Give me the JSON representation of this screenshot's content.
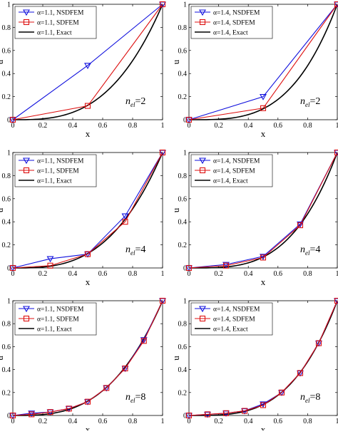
{
  "chart_data": [
    {
      "type": "line",
      "xlabel": "x",
      "ylabel": "u",
      "xlim": [
        0,
        1
      ],
      "ylim": [
        0,
        1
      ],
      "xticks": [
        "0",
        "0.2",
        "0.4",
        "0.6",
        "0.8",
        "1"
      ],
      "yticks": [
        "0",
        "0.2",
        "0.4",
        "0.6",
        "0.8",
        "1"
      ],
      "legend_position": "top-left",
      "annotation": {
        "n": "n",
        "sub": "el",
        "value": "=2"
      },
      "alpha": 1.1,
      "series": [
        {
          "name": "α=1.1, NSDFEM",
          "color": "#1010dd",
          "marker": "triangle-down",
          "x": [
            0,
            0.5,
            1
          ],
          "y": [
            0,
            0.47,
            1
          ]
        },
        {
          "name": "α=1.1, SDFEM",
          "color": "#dd1010",
          "marker": "square",
          "x": [
            0,
            0.5,
            1
          ],
          "y": [
            0,
            0.12,
            1
          ]
        },
        {
          "name": "α=1.1, Exact",
          "color": "#000000",
          "marker": "none",
          "exact": true
        }
      ]
    },
    {
      "type": "line",
      "xlabel": "x",
      "ylabel": "u",
      "xlim": [
        0,
        1
      ],
      "ylim": [
        0,
        1
      ],
      "xticks": [
        "0",
        "0.2",
        "0.4",
        "0.6",
        "0.8",
        "1"
      ],
      "yticks": [
        "0",
        "0.2",
        "0.4",
        "0.6",
        "0.8",
        "1"
      ],
      "legend_position": "top-left",
      "annotation": {
        "n": "n",
        "sub": "el",
        "value": "=2"
      },
      "alpha": 1.4,
      "series": [
        {
          "name": "α=1.4, NSDFEM",
          "color": "#1010dd",
          "marker": "triangle-down",
          "x": [
            0,
            0.5,
            1
          ],
          "y": [
            0,
            0.2,
            1
          ]
        },
        {
          "name": "α=1.4, SDFEM",
          "color": "#dd1010",
          "marker": "square",
          "x": [
            0,
            0.5,
            1
          ],
          "y": [
            0,
            0.1,
            1
          ]
        },
        {
          "name": "α=1.4, Exact",
          "color": "#000000",
          "marker": "none",
          "exact": true
        }
      ]
    },
    {
      "type": "line",
      "xlabel": "x",
      "ylabel": "u",
      "xlim": [
        0,
        1
      ],
      "ylim": [
        0,
        1
      ],
      "xticks": [
        "0",
        "0.2",
        "0.4",
        "0.6",
        "0.8",
        "1"
      ],
      "yticks": [
        "0",
        "0.2",
        "0.4",
        "0.6",
        "0.8",
        "1"
      ],
      "legend_position": "top-left",
      "annotation": {
        "n": "n",
        "sub": "el",
        "value": "=4"
      },
      "alpha": 1.1,
      "series": [
        {
          "name": "α=1.1, NSDFEM",
          "color": "#1010dd",
          "marker": "triangle-down",
          "x": [
            0,
            0.25,
            0.5,
            0.75,
            1
          ],
          "y": [
            0,
            0.08,
            0.12,
            0.45,
            1
          ]
        },
        {
          "name": "α=1.1, SDFEM",
          "color": "#dd1010",
          "marker": "square",
          "x": [
            0,
            0.25,
            0.5,
            0.75,
            1
          ],
          "y": [
            0,
            0.02,
            0.12,
            0.4,
            1
          ]
        },
        {
          "name": "α=1.1, Exact",
          "color": "#000000",
          "marker": "none",
          "exact": true
        }
      ]
    },
    {
      "type": "line",
      "xlabel": "x",
      "ylabel": "u",
      "xlim": [
        0,
        1
      ],
      "ylim": [
        0,
        1
      ],
      "xticks": [
        "0",
        "0.2",
        "0.4",
        "0.6",
        "0.8",
        "1"
      ],
      "yticks": [
        "0",
        "0.2",
        "0.4",
        "0.6",
        "0.8",
        "1"
      ],
      "legend_position": "top-left",
      "annotation": {
        "n": "n",
        "sub": "el",
        "value": "=4"
      },
      "alpha": 1.4,
      "series": [
        {
          "name": "α=1.4, NSDFEM",
          "color": "#1010dd",
          "marker": "triangle-down",
          "x": [
            0,
            0.25,
            0.5,
            0.75,
            1
          ],
          "y": [
            0,
            0.03,
            0.1,
            0.38,
            1
          ]
        },
        {
          "name": "α=1.4, SDFEM",
          "color": "#dd1010",
          "marker": "square",
          "x": [
            0,
            0.25,
            0.5,
            0.75,
            1
          ],
          "y": [
            0,
            0.02,
            0.09,
            0.37,
            1
          ]
        },
        {
          "name": "α=1.4, Exact",
          "color": "#000000",
          "marker": "none",
          "exact": true
        }
      ]
    },
    {
      "type": "line",
      "xlabel": "x",
      "ylabel": "u",
      "xlim": [
        0,
        1
      ],
      "ylim": [
        0,
        1
      ],
      "xticks": [
        "0",
        "0.2",
        "0.4",
        "0.6",
        "0.8",
        "1"
      ],
      "yticks": [
        "0",
        "0.2",
        "0.4",
        "0.6",
        "0.8",
        "1"
      ],
      "legend_position": "top-left",
      "annotation": {
        "n": "n",
        "sub": "el",
        "value": "=8"
      },
      "alpha": 1.1,
      "series": [
        {
          "name": "α=1.1, NSDFEM",
          "color": "#1010dd",
          "marker": "triangle-down",
          "x": [
            0,
            0.125,
            0.25,
            0.375,
            0.5,
            0.625,
            0.75,
            0.875,
            1
          ],
          "y": [
            0,
            0.02,
            0.03,
            0.06,
            0.12,
            0.24,
            0.41,
            0.66,
            1
          ]
        },
        {
          "name": "α=1.1, SDFEM",
          "color": "#dd1010",
          "marker": "square",
          "x": [
            0,
            0.125,
            0.25,
            0.375,
            0.5,
            0.625,
            0.75,
            0.875,
            1
          ],
          "y": [
            0,
            0.01,
            0.03,
            0.06,
            0.12,
            0.24,
            0.41,
            0.65,
            1
          ]
        },
        {
          "name": "α=1.1, Exact",
          "color": "#000000",
          "marker": "none",
          "exact": true
        }
      ]
    },
    {
      "type": "line",
      "xlabel": "x",
      "ylabel": "u",
      "xlim": [
        0,
        1
      ],
      "ylim": [
        0,
        1
      ],
      "xticks": [
        "0",
        "0.2",
        "0.4",
        "0.6",
        "0.8",
        "1"
      ],
      "yticks": [
        "0",
        "0.2",
        "0.4",
        "0.6",
        "0.8",
        "1"
      ],
      "legend_position": "top-left",
      "annotation": {
        "n": "n",
        "sub": "el",
        "value": "=8"
      },
      "alpha": 1.4,
      "series": [
        {
          "name": "α=1.4, NSDFEM",
          "color": "#1010dd",
          "marker": "triangle-down",
          "x": [
            0,
            0.125,
            0.25,
            0.375,
            0.5,
            0.625,
            0.75,
            0.875,
            1
          ],
          "y": [
            0,
            0.01,
            0.02,
            0.04,
            0.1,
            0.2,
            0.37,
            0.63,
            1
          ]
        },
        {
          "name": "α=1.4, SDFEM",
          "color": "#dd1010",
          "marker": "square",
          "x": [
            0,
            0.125,
            0.25,
            0.375,
            0.5,
            0.625,
            0.75,
            0.875,
            1
          ],
          "y": [
            0,
            0.01,
            0.02,
            0.04,
            0.09,
            0.2,
            0.37,
            0.63,
            1
          ]
        },
        {
          "name": "α=1.4, Exact",
          "color": "#000000",
          "marker": "none",
          "exact": true
        }
      ]
    }
  ]
}
